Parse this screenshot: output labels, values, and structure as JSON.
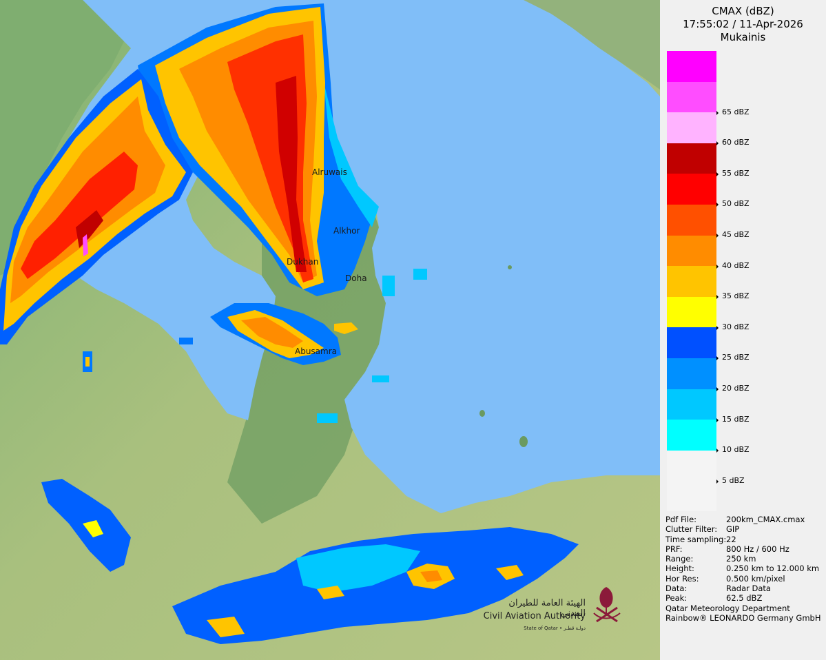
{
  "title": {
    "product": "CMAX (dBZ)",
    "datetime": "17:55:02 / 11-Apr-2026",
    "site": "Mukainis"
  },
  "cities": [
    {
      "name": "Alruwais"
    },
    {
      "name": "Alkhor"
    },
    {
      "name": "Dukhan"
    },
    {
      "name": "Doha"
    },
    {
      "name": "Abusamra"
    }
  ],
  "scale": [
    {
      "label": "",
      "color": "#ff00ff"
    },
    {
      "label": "65 dBZ",
      "color": "#ff4dff"
    },
    {
      "label": "60 dBZ",
      "color": "#ffb3ff"
    },
    {
      "label": "55 dBZ",
      "color": "#c00000"
    },
    {
      "label": "50 dBZ",
      "color": "#ff0000"
    },
    {
      "label": "45 dBZ",
      "color": "#ff5000"
    },
    {
      "label": "40 dBZ",
      "color": "#ff8c00"
    },
    {
      "label": "35 dBZ",
      "color": "#ffc400"
    },
    {
      "label": "30 dBZ",
      "color": "#ffff00"
    },
    {
      "label": "25 dBZ",
      "color": "#0050ff"
    },
    {
      "label": "20 dBZ",
      "color": "#0090ff"
    },
    {
      "label": "15 dBZ",
      "color": "#00c8ff"
    },
    {
      "label": "10 dBZ",
      "color": "#00ffff"
    },
    {
      "label": "5 dBZ",
      "color": "#f4f4f4"
    }
  ],
  "metadata": [
    {
      "key": "Pdf File:",
      "value": "200km_CMAX.cmax"
    },
    {
      "key": "Clutter Filter:",
      "value": "GIP"
    },
    {
      "key": "Time sampling:",
      "value": "22"
    },
    {
      "key": "PRF:",
      "value": "800 Hz / 600 Hz"
    },
    {
      "key": "Range:",
      "value": "250 km"
    },
    {
      "key": "Height:",
      "value": "0.250 km to 12.000 km"
    },
    {
      "key": "Hor Res:",
      "value": "0.500 km/pixel"
    },
    {
      "key": "Data:",
      "value": "Radar Data"
    },
    {
      "key": "Peak:",
      "value": "62.5 dBZ"
    }
  ],
  "credits": {
    "department": "Qatar Meteorology Department",
    "vendor": "Rainbow® LEONARDO Germany GmbH"
  },
  "logo": {
    "arabic": "الهيئة العامة للطيران المدني",
    "english": "Civil Aviation Authority",
    "sub": "State of Qatar • دولـة قطـر"
  },
  "colors": {
    "sea": "#80bef8",
    "land_green": "#72a868",
    "desert": "#b8c684",
    "panel_bg": "#f0f0f0"
  }
}
